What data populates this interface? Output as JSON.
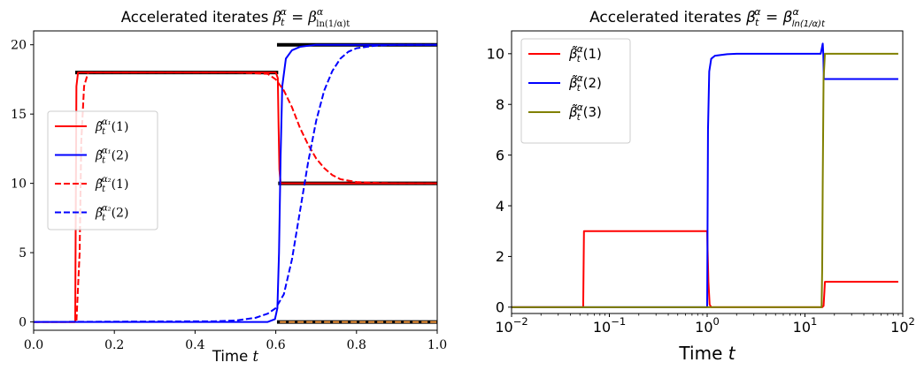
{
  "chart_data": [
    {
      "type": "line",
      "title": "Accelerated iterates β̃ₜ^α = β^α_ln(1/α)t",
      "title_parts": {
        "lhs": "Accelerated iterates ",
        "beta": "β",
        "t": "t",
        "alpha": "α",
        "eq": " = ",
        "sub": "ln(1/α)t"
      },
      "xlabel": "Time t",
      "xlabel_parts": {
        "text": "Time ",
        "var": "t"
      },
      "xscale": "linear",
      "xlim": [
        0.0,
        1.0
      ],
      "ylim": [
        -0.6,
        21.0
      ],
      "xticks": [
        0.0,
        0.2,
        0.4,
        0.6,
        0.8,
        1.0
      ],
      "xtick_labels": [
        "0.0",
        "0.2",
        "0.4",
        "0.6",
        "0.8",
        "1.0"
      ],
      "yticks": [
        0,
        5,
        10,
        15,
        20
      ],
      "ytick_labels": [
        "0",
        "5",
        "10",
        "15",
        "20"
      ],
      "grid": false,
      "legend": {
        "placement": "center-left",
        "entries": [
          {
            "main": "β̃",
            "sup": "α₁",
            "arg": "(1)",
            "color": "#ff0000",
            "dash": "solid"
          },
          {
            "main": "β̃",
            "sup": "α₁",
            "arg": "(2)",
            "color": "#0000ff",
            "dash": "solid"
          },
          {
            "main": "β̃",
            "sup": "α₂",
            "arg": "(1)",
            "color": "#ff0000",
            "dash": "dashed"
          },
          {
            "main": "β̃",
            "sup": "α₂",
            "arg": "(2)",
            "color": "#0000ff",
            "dash": "dashed"
          }
        ]
      },
      "reference_segments": [
        {
          "x": [
            0.103,
            0.606
          ],
          "y": [
            18,
            18
          ],
          "color": "#000000"
        },
        {
          "x": [
            0.606,
            1.0
          ],
          "y": [
            10,
            10
          ],
          "color": "#000000"
        },
        {
          "x": [
            0.603,
            1.0
          ],
          "y": [
            20,
            20
          ],
          "color": "#000000"
        },
        {
          "x": [
            0.603,
            1.0
          ],
          "y": [
            0,
            0
          ],
          "color": "#000000"
        }
      ],
      "series": [
        {
          "label_index": 0,
          "color": "#ff0000",
          "dash": "solid",
          "x": [
            0.0,
            0.103,
            0.106,
            0.11,
            0.6,
            0.605,
            0.607,
            0.609,
            0.612,
            0.62,
            1.0
          ],
          "y": [
            0,
            0,
            17.0,
            18,
            18,
            17.6,
            14.0,
            11.0,
            10.0,
            10,
            10
          ]
        },
        {
          "label_index": 1,
          "color": "#0000ff",
          "dash": "solid",
          "x": [
            0.0,
            0.58,
            0.598,
            0.604,
            0.608,
            0.612,
            0.616,
            0.625,
            0.64,
            0.66,
            0.7,
            1.0
          ],
          "y": [
            0,
            0,
            0.2,
            1.0,
            5.0,
            12.0,
            17.0,
            19.0,
            19.6,
            19.85,
            20,
            20
          ]
        },
        {
          "label_index": 2,
          "color": "#ff0000",
          "dash": "dashed",
          "x": [
            0.0,
            0.106,
            0.114,
            0.118,
            0.125,
            0.135,
            0.5,
            0.58,
            0.6,
            0.62,
            0.64,
            0.66,
            0.68,
            0.7,
            0.72,
            0.74,
            0.76,
            0.8,
            0.85,
            0.9,
            1.0
          ],
          "y": [
            0,
            0,
            5.0,
            13.0,
            17.0,
            18,
            18,
            17.9,
            17.5,
            16.7,
            15.5,
            14.0,
            12.8,
            11.8,
            11.1,
            10.6,
            10.3,
            10.1,
            10.03,
            10.0,
            10
          ]
        },
        {
          "label_index": 3,
          "color": "#0000ff",
          "dash": "dashed",
          "x": [
            0.0,
            0.45,
            0.5,
            0.55,
            0.58,
            0.6,
            0.62,
            0.64,
            0.66,
            0.68,
            0.7,
            0.72,
            0.74,
            0.76,
            0.78,
            0.8,
            0.85,
            0.9,
            1.0
          ],
          "y": [
            0,
            0.05,
            0.1,
            0.3,
            0.6,
            1.0,
            2.0,
            4.5,
            8.0,
            11.5,
            14.5,
            16.7,
            18.1,
            19.0,
            19.5,
            19.75,
            19.95,
            20,
            20
          ]
        },
        {
          "label_index": -1,
          "color": "#ffa040",
          "dash": "dashed",
          "x": [
            0.61,
            1.0
          ],
          "y": [
            0,
            0
          ]
        }
      ]
    },
    {
      "type": "line",
      "title": "Accelerated iterates β̃ₜ^α = β^α_ln(1/α)t",
      "title_parts": {
        "lhs": "Accelerated iterates ",
        "beta": "β",
        "t": "t",
        "alpha": "α",
        "eq": " = ",
        "sub": "ln(1/α)t"
      },
      "xlabel": "Time t",
      "xlabel_parts": {
        "text": "Time ",
        "var": "t"
      },
      "xscale": "log",
      "xlim": [
        0.01,
        100
      ],
      "ylim": [
        -0.25,
        10.9
      ],
      "xticks": [
        0.01,
        0.1,
        1,
        10,
        100
      ],
      "xtick_labels": [
        {
          "base": "10",
          "exp": "−2"
        },
        {
          "base": "10",
          "exp": "−1"
        },
        {
          "base": "10",
          "exp": "0"
        },
        {
          "base": "10",
          "exp": "1"
        },
        {
          "base": "10",
          "exp": "2"
        }
      ],
      "yticks": [
        0,
        2,
        4,
        6,
        8,
        10
      ],
      "ytick_labels": [
        "0",
        "2",
        "4",
        "6",
        "8",
        "10"
      ],
      "grid": false,
      "legend": {
        "placement": "upper-left",
        "entries": [
          {
            "main": "β̃",
            "sup": "α",
            "arg": "(1)",
            "color": "#ff0000",
            "dash": "solid"
          },
          {
            "main": "β̃",
            "sup": "α",
            "arg": "(2)",
            "color": "#0000ff",
            "dash": "solid"
          },
          {
            "main": "β̃",
            "sup": "α",
            "arg": "(3)",
            "color": "#808000",
            "dash": "solid"
          }
        ]
      },
      "series": [
        {
          "label_index": 0,
          "color": "#ff0000",
          "dash": "solid",
          "x": [
            0.01,
            0.054,
            0.055,
            1.0,
            1.03,
            1.06,
            1.1,
            15.0,
            15.5,
            15.8,
            16.0,
            90
          ],
          "y": [
            0,
            0,
            3,
            3,
            1.0,
            0.1,
            0,
            0,
            0.05,
            0.6,
            1,
            1
          ]
        },
        {
          "label_index": 1,
          "color": "#0000ff",
          "dash": "solid",
          "x": [
            0.01,
            1.0,
            1.02,
            1.05,
            1.1,
            1.2,
            1.6,
            2.0,
            14.5,
            15.2,
            15.4,
            15.6,
            90
          ],
          "y": [
            0,
            0,
            7.0,
            9.3,
            9.8,
            9.92,
            9.98,
            10.0,
            10.0,
            10.4,
            10.0,
            9.0,
            9.0
          ]
        },
        {
          "label_index": 2,
          "color": "#808000",
          "dash": "solid",
          "x": [
            0.01,
            14.8,
            15.0,
            15.2,
            15.5,
            16.0,
            90
          ],
          "y": [
            0,
            0,
            1.5,
            5.0,
            9.0,
            10,
            10
          ]
        }
      ]
    }
  ]
}
